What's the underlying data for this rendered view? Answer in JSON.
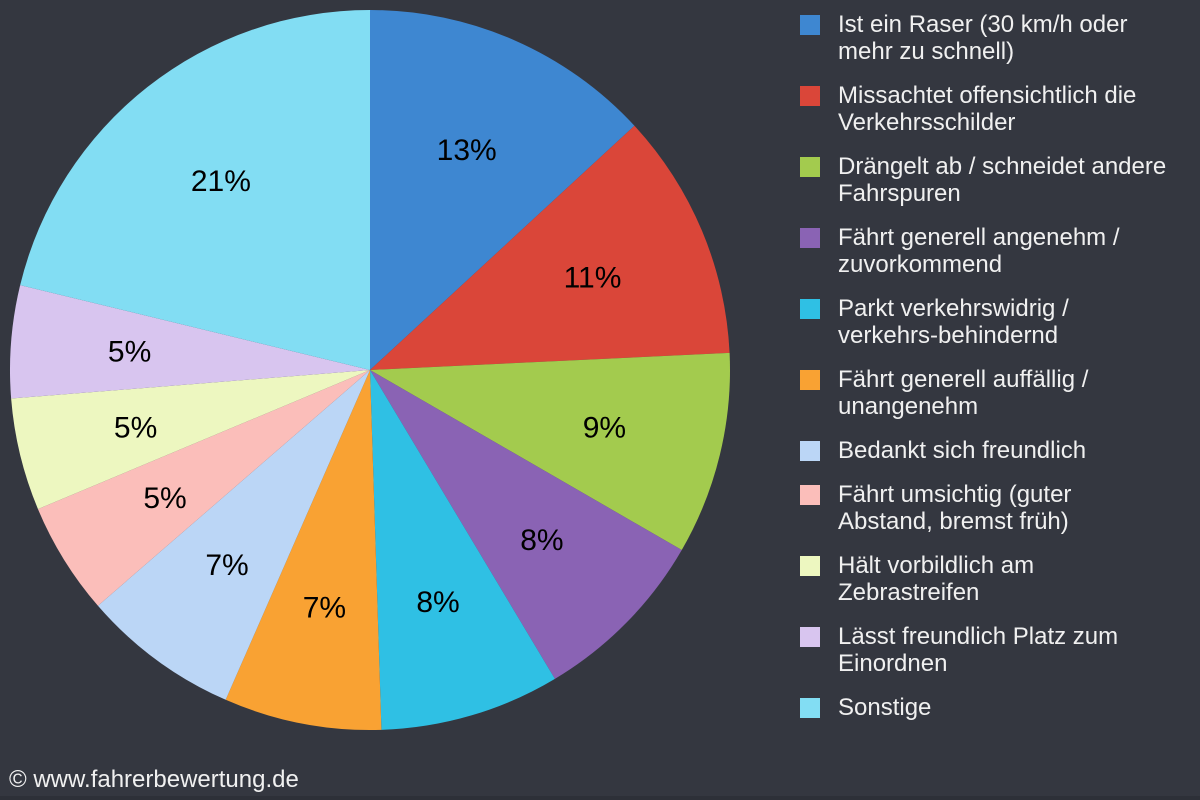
{
  "canvas": {
    "background": "#343740",
    "bottom_edge_color": "#2d3038"
  },
  "footer": {
    "copyright": "© www.fahrerbewertung.de",
    "color": "#f0f0f0"
  },
  "chart_data": {
    "type": "pie",
    "legend_position": "right",
    "direction": "clockwise",
    "start_angle_deg": 0,
    "slice_label_color": "#000000",
    "legend_text_color": "#f0f0f0",
    "slices": [
      {
        "label": "Ist ein Raser (30 km/h oder mehr zu schnell)",
        "legend_lines": "Ist ein Raser (30 km/h oder\nmehr zu schnell)",
        "value": 13,
        "display": "13%",
        "color": "#3e87d1"
      },
      {
        "label": "Missachtet offensichtlich die Verkehrsschilder",
        "legend_lines": "Missachtet offensichtlich die\nVerkehrsschilder",
        "value": 11,
        "display": "11%",
        "color": "#da4639"
      },
      {
        "label": "Drängelt ab / schneidet andere Fahrspuren",
        "legend_lines": "Drängelt ab / schneidet andere\nFahrspuren",
        "value": 9,
        "display": "9%",
        "color": "#a3cb4e"
      },
      {
        "label": "Fährt generell angenehm / zuvorkommend",
        "legend_lines": "Fährt generell angenehm /\nzuvorkommend",
        "value": 8,
        "display": "8%",
        "color": "#8a63b4"
      },
      {
        "label": "Parkt verkehrswidrig / verkehrs-behindernd",
        "legend_lines": "Parkt verkehrswidrig /\nverkehrs-behindernd",
        "value": 8,
        "display": "8%",
        "color": "#2fc0e4"
      },
      {
        "label": "Fährt generell auffällig / unangenehm",
        "legend_lines": "Fährt generell auffällig /\nunangenehm",
        "value": 7,
        "display": "7%",
        "color": "#f9a233"
      },
      {
        "label": "Bedankt sich freundlich",
        "legend_lines": "Bedankt sich freundlich",
        "value": 7,
        "display": "7%",
        "color": "#bbd6f6"
      },
      {
        "label": "Fährt umsichtig (guter Abstand, bremst früh)",
        "legend_lines": "Fährt umsichtig (guter\nAbstand, bremst früh)",
        "value": 5,
        "display": "5%",
        "color": "#fbbeba"
      },
      {
        "label": "Hält vorbildlich am Zebrastreifen",
        "legend_lines": "Hält vorbildlich am\nZebrastreifen",
        "value": 5,
        "display": "5%",
        "color": "#edf7c0"
      },
      {
        "label": "Lässt freundlich Platz zum Einordnen",
        "legend_lines": "Lässt freundlich Platz zum\nEinordnen",
        "value": 5,
        "display": "5%",
        "color": "#d8c5ef"
      },
      {
        "label": "Sonstige",
        "legend_lines": "Sonstige",
        "value": 21,
        "display": "21%",
        "color": "#82ddf3"
      }
    ]
  }
}
